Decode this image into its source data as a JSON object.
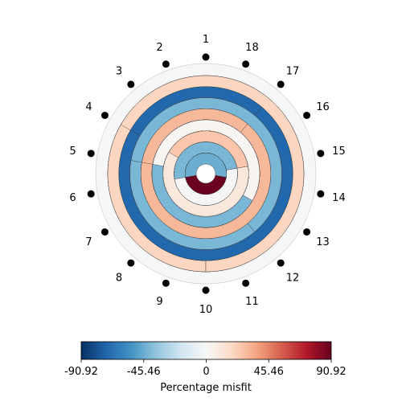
{
  "chart_data": {
    "type": "bullseye",
    "title": "",
    "segment_labels": [
      "1",
      "2",
      "3",
      "4",
      "5",
      "6",
      "7",
      "8",
      "9",
      "10",
      "11",
      "12",
      "13",
      "14",
      "15",
      "16",
      "17",
      "18"
    ],
    "colorbar": {
      "label": "Percentage misfit",
      "vmin": -90.92,
      "vmax": 90.92,
      "colormap": "RdBu_r",
      "ticks": [
        -90.92,
        -45.46,
        0,
        45.46,
        90.92
      ],
      "tick_labels": [
        "-90.92",
        "-45.46",
        "0",
        "45.46",
        "90.92"
      ]
    },
    "rings": [
      {
        "ring": 1,
        "segments": [
          {
            "from": "4",
            "to": "1",
            "value": -30
          },
          {
            "from": "1",
            "to": "17",
            "value": -20
          },
          {
            "from": "17",
            "to": "10",
            "value": 20
          },
          {
            "from": "10",
            "to": "4",
            "value": 20
          }
        ]
      },
      {
        "ring": 2,
        "segments": [
          {
            "from": "4",
            "to": "17",
            "value": -72
          },
          {
            "from": "17",
            "to": "4",
            "value": -72
          }
        ]
      },
      {
        "ring": 3,
        "segments": [
          {
            "from": "5",
            "to": "2",
            "value": -42
          },
          {
            "from": "2",
            "to": "18",
            "value": -42
          },
          {
            "from": "18",
            "to": "17",
            "value": -3
          },
          {
            "from": "17",
            "to": "12",
            "value": -42
          },
          {
            "from": "12",
            "to": "5",
            "value": -42
          }
        ]
      },
      {
        "ring": 4,
        "segments": [
          {
            "from": "5",
            "to": "2",
            "value": -2
          },
          {
            "from": "2",
            "to": "1",
            "value": -5
          },
          {
            "from": "1",
            "to": "17",
            "value": 30
          },
          {
            "from": "17",
            "to": "5",
            "value": 30
          }
        ]
      },
      {
        "ring": 5,
        "segments": [
          {
            "from": "5",
            "to": "4",
            "value": -72
          },
          {
            "from": "4",
            "to": "3",
            "value": 68
          },
          {
            "from": "3",
            "to": "1",
            "value": -2
          },
          {
            "from": "1",
            "to": "17",
            "value": 2
          },
          {
            "from": "17",
            "to": "16",
            "value": -3
          },
          {
            "from": "16",
            "to": "13",
            "value": -42
          },
          {
            "from": "13",
            "to": "5",
            "value": 2
          }
        ]
      },
      {
        "ring": 6,
        "segments": [
          {
            "from": "4",
            "to": "3",
            "value": -3
          },
          {
            "from": "3",
            "to": "2",
            "value": 48
          },
          {
            "from": "2",
            "to": "1",
            "value": -4
          },
          {
            "from": "1",
            "to": "18",
            "value": -75
          },
          {
            "from": "18",
            "to": "17",
            "value": -2
          },
          {
            "from": "17",
            "to": "15",
            "value": 10
          },
          {
            "from": "15",
            "to": "4",
            "value": 25
          }
        ]
      },
      {
        "ring": 7,
        "segments": [
          {
            "from": "6",
            "to": "4",
            "value": -72
          },
          {
            "from": "4",
            "to": "3",
            "value": 2
          },
          {
            "from": "3",
            "to": "1",
            "value": -42
          },
          {
            "from": "1",
            "to": "15",
            "value": -2
          },
          {
            "from": "15",
            "to": "6",
            "value": -42
          }
        ]
      },
      {
        "ring": 8,
        "segments": [
          {
            "from": "6",
            "to": "4",
            "value": 5
          },
          {
            "from": "4",
            "to": "3",
            "value": 25
          },
          {
            "from": "3",
            "to": "1",
            "value": -2
          },
          {
            "from": "1",
            "to": "17",
            "value": -3
          },
          {
            "from": "17",
            "to": "16",
            "value": 45
          },
          {
            "from": "16",
            "to": "15",
            "value": 2
          },
          {
            "from": "15",
            "to": "14",
            "value": 90
          },
          {
            "from": "14",
            "to": "6",
            "value": -45
          }
        ]
      }
    ]
  }
}
